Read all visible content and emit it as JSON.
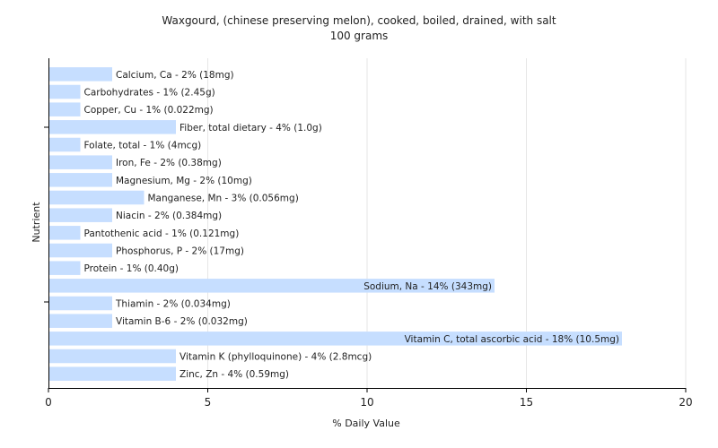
{
  "chart_data": {
    "type": "bar",
    "orientation": "horizontal",
    "title": "Waxgourd, (chinese preserving melon), cooked, boiled, drained, with salt",
    "subtitle": "100 grams",
    "xlabel": "% Daily Value",
    "ylabel": "Nutrient",
    "xlim": [
      0,
      20
    ],
    "xticks": [
      "0",
      "5",
      "10",
      "15",
      "20"
    ],
    "grid": true,
    "bar_color": "#c6deff",
    "categories": [
      "Calcium, Ca",
      "Carbohydrates",
      "Copper, Cu",
      "Fiber, total dietary",
      "Folate, total",
      "Iron, Fe",
      "Magnesium, Mg",
      "Manganese, Mn",
      "Niacin",
      "Pantothenic acid",
      "Phosphorus, P",
      "Protein",
      "Sodium, Na",
      "Thiamin",
      "Vitamin B-6",
      "Vitamin C, total ascorbic acid",
      "Vitamin K (phylloquinone)",
      "Zinc, Zn"
    ],
    "values": [
      2,
      1,
      1,
      4,
      1,
      2,
      2,
      3,
      2,
      1,
      2,
      1,
      14,
      2,
      2,
      18,
      4,
      4
    ],
    "labels": [
      "Calcium, Ca - 2% (18mg)",
      "Carbohydrates - 1% (2.45g)",
      "Copper, Cu - 1% (0.022mg)",
      "Fiber, total dietary - 4% (1.0g)",
      "Folate, total - 1% (4mcg)",
      "Iron, Fe - 2% (0.38mg)",
      "Magnesium, Mg - 2% (10mg)",
      "Manganese, Mn - 3% (0.056mg)",
      "Niacin - 2% (0.384mg)",
      "Pantothenic acid - 1% (0.121mg)",
      "Phosphorus, P - 2% (17mg)",
      "Protein - 1% (0.40g)",
      "Sodium, Na - 14% (343mg)",
      "Thiamin - 2% (0.034mg)",
      "Vitamin B-6 - 2% (0.032mg)",
      "Vitamin C, total ascorbic acid - 18% (10.5mg)",
      "Vitamin K (phylloquinone) - 4% (2.8mcg)",
      "Zinc, Zn - 4% (0.59mg)"
    ]
  }
}
